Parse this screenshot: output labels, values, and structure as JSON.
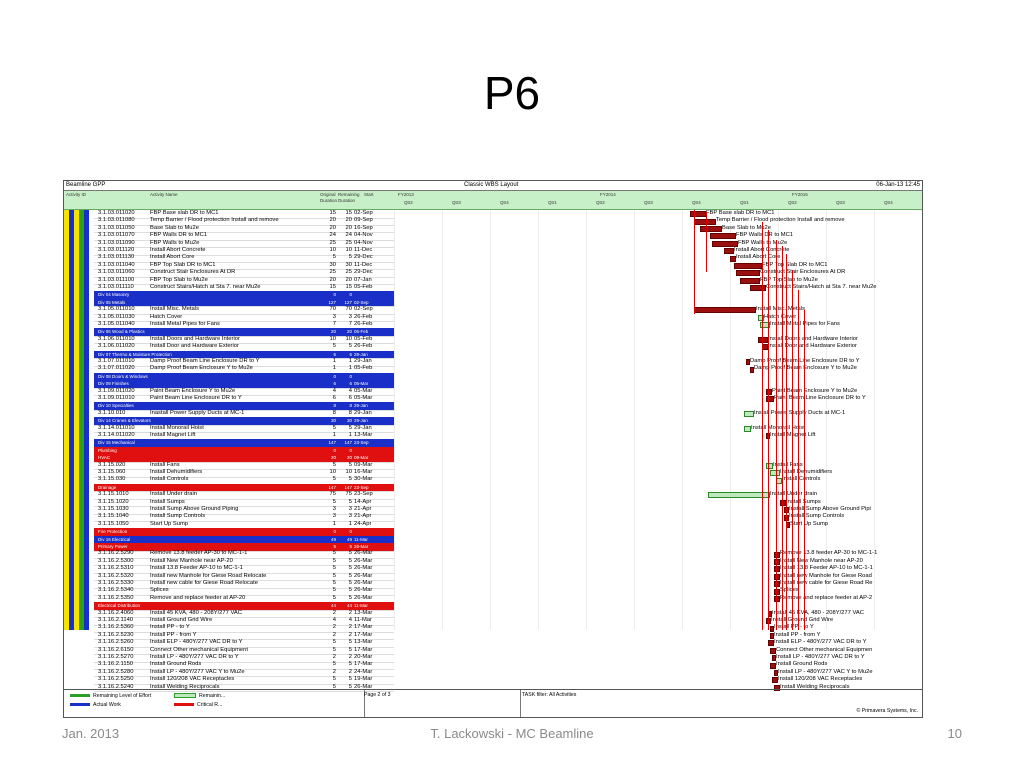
{
  "slide": {
    "title": "P6",
    "footer_left": "Jan. 2013",
    "footer_center": "T. Lackowski - MC Beamline",
    "footer_right": "10"
  },
  "p6": {
    "project": "Beamline GPP",
    "layout": "Classic WBS Layout",
    "date": "06-Jan-13 12:45",
    "columns": {
      "id": "Activity ID",
      "name": "Activity Name",
      "orig_dur": "Original Duration",
      "rem_dur": "Remaining Duration",
      "start": "Start"
    },
    "fiscal_years": [
      "FY2013",
      "FY2014",
      "FY2015"
    ],
    "quarters": [
      "Qtr2",
      "Qtr3",
      "Qtr4",
      "Qtr1",
      "Qtr2",
      "Qtr3",
      "Qtr4",
      "Qtr1",
      "Qtr2",
      "Qtr3",
      "Qtr4"
    ],
    "rows": [
      {
        "type": "act",
        "id": "3.1.03.011020",
        "name": "FBP Base slab DR to MC1",
        "od": "15",
        "rd": "15",
        "start": "02-Sep"
      },
      {
        "type": "act",
        "id": "3.1.03.011080",
        "name": "Temp Barrier / Flood protection Install and remove",
        "od": "20",
        "rd": "20",
        "start": "09-Sep"
      },
      {
        "type": "act",
        "id": "3.1.03.011050",
        "name": "Base Slab to Mu2e",
        "od": "20",
        "rd": "20",
        "start": "16-Sep"
      },
      {
        "type": "act",
        "id": "3.1.03.011070",
        "name": "FBP Walls DR to MC1",
        "od": "24",
        "rd": "24",
        "start": "04-Nov"
      },
      {
        "type": "act",
        "id": "3.1.03.011090",
        "name": "FBP Walls to Mu2e",
        "od": "25",
        "rd": "25",
        "start": "04-Nov"
      },
      {
        "type": "act",
        "id": "3.1.03.011120",
        "name": "Install Abort Concrete",
        "od": "10",
        "rd": "10",
        "start": "11-Dec"
      },
      {
        "type": "act",
        "id": "3.1.03.011130",
        "name": "Install Abort Core",
        "od": "5",
        "rd": "5",
        "start": "29-Dec"
      },
      {
        "type": "act",
        "id": "3.1.03.011040",
        "name": "FBP Top Slab DR to MC1",
        "od": "30",
        "rd": "30",
        "start": "11-Dec"
      },
      {
        "type": "act",
        "id": "3.1.03.011060",
        "name": "Construct Stair Enclosures At DR",
        "od": "25",
        "rd": "25",
        "start": "29-Dec"
      },
      {
        "type": "act",
        "id": "3.1.03.011100",
        "name": "FBP Top Slab to Mu2e",
        "od": "20",
        "rd": "20",
        "start": "07-Jan"
      },
      {
        "type": "act",
        "id": "3.1.03.011110",
        "name": "Construct Stairs/Hatch at Sta 7. near Mu2e",
        "od": "15",
        "rd": "15",
        "start": "05-Feb"
      },
      {
        "type": "grp",
        "color": "blue",
        "id": "Div 04 Masonry",
        "name": "",
        "od": "0",
        "rd": "0",
        "start": ""
      },
      {
        "type": "grp",
        "color": "blue",
        "id": "Div 05 Metals",
        "name": "",
        "od": "127",
        "rd": "127",
        "start": "02-Sep"
      },
      {
        "type": "act",
        "id": "3.1.05.011010",
        "name": "Install Misc. Metals",
        "od": "70",
        "rd": "70",
        "start": "02-Sep"
      },
      {
        "type": "act",
        "id": "3.1.05.011030",
        "name": "Hatch Cover",
        "od": "3",
        "rd": "3",
        "start": "26-Feb"
      },
      {
        "type": "act",
        "id": "3.1.05.011040",
        "name": "Install Metal Pipes for Fans",
        "od": "7",
        "rd": "7",
        "start": "26-Feb"
      },
      {
        "type": "grp",
        "color": "blue",
        "id": "Div 06 Wood & Plastics",
        "name": "",
        "od": "20",
        "rd": "20",
        "start": "05-Feb"
      },
      {
        "type": "act",
        "id": "3.1.06.011010",
        "name": "Install Doors and Hardware Interior",
        "od": "10",
        "rd": "10",
        "start": "05-Feb"
      },
      {
        "type": "act",
        "id": "3.1.06.011020",
        "name": "Install Door and Hardware Exterior",
        "od": "5",
        "rd": "5",
        "start": "26-Feb"
      },
      {
        "type": "grp",
        "color": "blue",
        "id": "Div 07 Thermo & Moisture Protection",
        "name": "",
        "od": "6",
        "rd": "6",
        "start": "29-Jan"
      },
      {
        "type": "act",
        "id": "3.1.07.011010",
        "name": "Damp Proof Beam Line Enclosure DR to Y",
        "od": "1",
        "rd": "1",
        "start": "29-Jan"
      },
      {
        "type": "act",
        "id": "3.1.07.011020",
        "name": "Damp Proof Beam Enclosure Y to Mu2e",
        "od": "1",
        "rd": "1",
        "start": "05-Feb"
      },
      {
        "type": "grp",
        "color": "blue",
        "id": "Div 08 Doors & Windows",
        "name": "",
        "od": "0",
        "rd": "0",
        "start": ""
      },
      {
        "type": "grp",
        "color": "blue",
        "id": "Div 09 Finishes",
        "name": "",
        "od": "6",
        "rd": "6",
        "start": "05-Mar"
      },
      {
        "type": "act",
        "id": "3.1.09.011020",
        "name": "Paint Beam Enclosure Y to Mu2e",
        "od": "4",
        "rd": "4",
        "start": "05-Mar"
      },
      {
        "type": "act",
        "id": "3.1.09.011010",
        "name": "Paint Beam Line Enclosure DR to Y",
        "od": "6",
        "rd": "6",
        "start": "05-Mar"
      },
      {
        "type": "grp",
        "color": "blue",
        "id": "Div 10 Specialties",
        "name": "",
        "od": "8",
        "rd": "8",
        "start": "29-Jan"
      },
      {
        "type": "act",
        "id": "3.1.10.010",
        "name": "Inastall Power Supply Ducts at MC-1",
        "od": "8",
        "rd": "8",
        "start": "29-Jan"
      },
      {
        "type": "grp",
        "color": "blue",
        "id": "Div 14 Cranes & Elevators",
        "name": "",
        "od": "30",
        "rd": "30",
        "start": "29-Jan"
      },
      {
        "type": "act",
        "id": "3.1.14.011010",
        "name": "Install Monorail Hoist",
        "od": "5",
        "rd": "5",
        "start": "29-Jan"
      },
      {
        "type": "act",
        "id": "3.1.14.011020",
        "name": "Install Magnet Lift",
        "od": "1",
        "rd": "1",
        "start": "13-Mar"
      },
      {
        "type": "grp",
        "color": "blue",
        "id": "Div 15 Mechanical",
        "name": "",
        "od": "147",
        "rd": "147",
        "start": "23-Sep"
      },
      {
        "type": "grp",
        "color": "red",
        "id": "Plumbing",
        "name": "",
        "od": "0",
        "rd": "0",
        "start": ""
      },
      {
        "type": "grp",
        "color": "red",
        "id": "HVAC",
        "name": "",
        "od": "20",
        "rd": "20",
        "start": "09-Mar"
      },
      {
        "type": "act",
        "id": "3.1.15.020",
        "name": "Install Fans",
        "od": "5",
        "rd": "5",
        "start": "09-Mar"
      },
      {
        "type": "act",
        "id": "3.1.15.060",
        "name": "Install Dehumidifiers",
        "od": "10",
        "rd": "10",
        "start": "16-Mar"
      },
      {
        "type": "act",
        "id": "3.1.15.030",
        "name": "Install Controls",
        "od": "5",
        "rd": "5",
        "start": "30-Mar"
      },
      {
        "type": "grp",
        "color": "red",
        "id": "Drainage",
        "name": "",
        "od": "147",
        "rd": "147",
        "start": "23-Sep"
      },
      {
        "type": "act",
        "id": "3.1.15.1010",
        "name": "Install Under drain",
        "od": "75",
        "rd": "75",
        "start": "23-Sep"
      },
      {
        "type": "act",
        "id": "3.1.15.1020",
        "name": "Install Sumps",
        "od": "5",
        "rd": "5",
        "start": "14-Apr"
      },
      {
        "type": "act",
        "id": "3.1.15.1030",
        "name": "Install Sump Above Ground Piping",
        "od": "3",
        "rd": "3",
        "start": "21-Apr"
      },
      {
        "type": "act",
        "id": "3.1.15.1040",
        "name": "Install Sump Controls",
        "od": "3",
        "rd": "3",
        "start": "21-Apr"
      },
      {
        "type": "act",
        "id": "3.1.15.1050",
        "name": "Start Up Sump",
        "od": "1",
        "rd": "1",
        "start": "24-Apr"
      },
      {
        "type": "grp",
        "color": "red",
        "id": "Fire Protection",
        "name": "",
        "od": "0",
        "rd": "0",
        "start": ""
      },
      {
        "type": "grp",
        "color": "blue",
        "id": "Div 16 Electrical",
        "name": "",
        "od": "49",
        "rd": "49",
        "start": "11-Mar"
      },
      {
        "type": "grp",
        "color": "red",
        "id": "Primary Power",
        "name": "",
        "od": "5",
        "rd": "5",
        "start": "26-Mar"
      },
      {
        "type": "act",
        "id": "3.1.16.2.5290",
        "name": "Remove 13.8 feeder AP-30 to MC-1-1",
        "od": "5",
        "rd": "5",
        "start": "26-Mar"
      },
      {
        "type": "act",
        "id": "3.1.16.2.5300",
        "name": "Install New Manhole near AP-20",
        "od": "5",
        "rd": "5",
        "start": "26-Mar"
      },
      {
        "type": "act",
        "id": "3.1.16.2.5310",
        "name": "Install 13.8 Feeder AP-10 to MC-1-1",
        "od": "5",
        "rd": "5",
        "start": "26-Mar"
      },
      {
        "type": "act",
        "id": "3.1.16.2.5320",
        "name": "Install new Manhole for Giese Road Relocate",
        "od": "5",
        "rd": "5",
        "start": "26-Mar"
      },
      {
        "type": "act",
        "id": "3.1.16.2.5330",
        "name": "Install new cable for Giese Road Relocate",
        "od": "5",
        "rd": "5",
        "start": "26-Mar"
      },
      {
        "type": "act",
        "id": "3.1.16.2.5340",
        "name": "Splices",
        "od": "5",
        "rd": "5",
        "start": "26-Mar"
      },
      {
        "type": "act",
        "id": "3.1.16.2.5350",
        "name": "Remove and replace feeder at AP-20",
        "od": "5",
        "rd": "5",
        "start": "26-Mar"
      },
      {
        "type": "grp",
        "color": "red",
        "id": "Electrical Distribution",
        "name": "",
        "od": "44",
        "rd": "44",
        "start": "11-Mar"
      },
      {
        "type": "act",
        "id": "3.1.16.2.4060",
        "name": "Install 45 KVA, 480 - 208Y/277 VAC",
        "od": "2",
        "rd": "2",
        "start": "13-Mar"
      },
      {
        "type": "act",
        "id": "3.1.16.2.1140",
        "name": "Install Ground Grid Wire",
        "od": "4",
        "rd": "4",
        "start": "11-Mar"
      },
      {
        "type": "act",
        "id": "3.1.16.2.5360",
        "name": "Install PP - to Y",
        "od": "2",
        "rd": "2",
        "start": "17-Mar"
      },
      {
        "type": "act",
        "id": "3.1.16.2.5230",
        "name": "Install PP - from Y",
        "od": "2",
        "rd": "2",
        "start": "17-Mar"
      },
      {
        "type": "act",
        "id": "3.1.16.2.5260",
        "name": "Install ELP - 480Y/277 VAC DR to Y",
        "od": "5",
        "rd": "5",
        "start": "13-Mar"
      },
      {
        "type": "act",
        "id": "3.1.16.2.6150",
        "name": "Connect Other mechanical Equipment",
        "od": "5",
        "rd": "5",
        "start": "17-Mar"
      },
      {
        "type": "act",
        "id": "3.1.16.2.5270",
        "name": "Install LP - 480Y/277 VAC DR to Y",
        "od": "2",
        "rd": "2",
        "start": "20-Mar"
      },
      {
        "type": "act",
        "id": "3.1.16.2.1150",
        "name": "Install Ground Rods",
        "od": "5",
        "rd": "5",
        "start": "17-Mar"
      },
      {
        "type": "act",
        "id": "3.1.16.2.5280",
        "name": "Install LP - 480Y/277 VAC Y to Mu2e",
        "od": "2",
        "rd": "2",
        "start": "24-Mar"
      },
      {
        "type": "act",
        "id": "3.1.16.2.5250",
        "name": "Install 120/208 VAC Receptacles",
        "od": "5",
        "rd": "5",
        "start": "19-Mar"
      },
      {
        "type": "act",
        "id": "3.1.16.2.5240",
        "name": "Install Welding Reciprocals",
        "od": "5",
        "rd": "5",
        "start": "26-Mar"
      }
    ],
    "gantt_labels": [
      "FBP Base slab DR to MC1",
      "Temp Barrier / Flood protection Install and remove",
      "Base Slab to Mu2e",
      "FBP Walls DR to MC1",
      "FBP Walls to Mu2e",
      "Install Abort Concrete",
      "Install Abort Core",
      "FBP Top Slab DR to MC1",
      "Construct Stair Enclosures At DR",
      "FBP Top Slab to Mu2e",
      "Construct Stairs/Hatch at Sta 7. near Mu2e",
      "Install Misc. Metals",
      "Hatch Cover",
      "Install Metal Pipes for Fans",
      "Install Doors and Hardware Interior",
      "Install Door and Hardware Exterior",
      "Damp Proof Beam Line Enclosure DR to Y",
      "Damp Proof Beam Enclosure Y to Mu2e",
      "Paint Beam Enclosure Y to Mu2e",
      "Paint Beam Line Enclosure DR to Y",
      "Install Power Supply Ducts at MC-1",
      "Install Monorail Hoist",
      "Install Magnet Lift",
      "Install Fans",
      "Install Dehumidifiers",
      "Install Controls",
      "Install Under drain",
      "Install Sumps",
      "Install Sump Above Ground Pipi",
      "Install Sump Controls",
      "Start Up Sump",
      "Remove 13.8 feeder AP-30 to MC-1-1",
      "Install New Manhole near AP-20",
      "Install 13.8 Feeder AP-10 to MC-1-1",
      "Install new Manhole for Giese Road",
      "Install new cable for Giese Road Re",
      "Splices",
      "Remove and replace feeder at AP-2",
      "Install 45 KVA, 480 - 208Y/277 VAC",
      "Install Ground Grid Wire",
      "Install PP - to Y",
      "Install PP - from Y",
      "Install ELP - 480Y/277 VAC DR to Y",
      "Connect Other mechanical Equipmen",
      "Install LP - 480Y/277 VAC DR to Y",
      "Install Ground Rods",
      "Install LP - 480Y/277 VAC Y to Mu2e",
      "Install 120/208 VAC Receptacles",
      "Install Welding Reciprocals"
    ],
    "footer": {
      "legend_rlo": "Remaining Level of Effort",
      "legend_actual": "Actual Work",
      "legend_remaining": "Remainin...",
      "legend_critical": "Critical R...",
      "page": "Page 2 of 3",
      "filter": "TASK filter: All Activities",
      "copyright": "© Primavera Systems, Inc."
    },
    "colors": {
      "blue_band": "#1a2fc8",
      "red_band": "#e01010",
      "yellow": "#f5e400",
      "green": "#2aa02a",
      "bar_dark_red": "#9a1010",
      "bar_light_green": "#bfe8bf"
    }
  }
}
